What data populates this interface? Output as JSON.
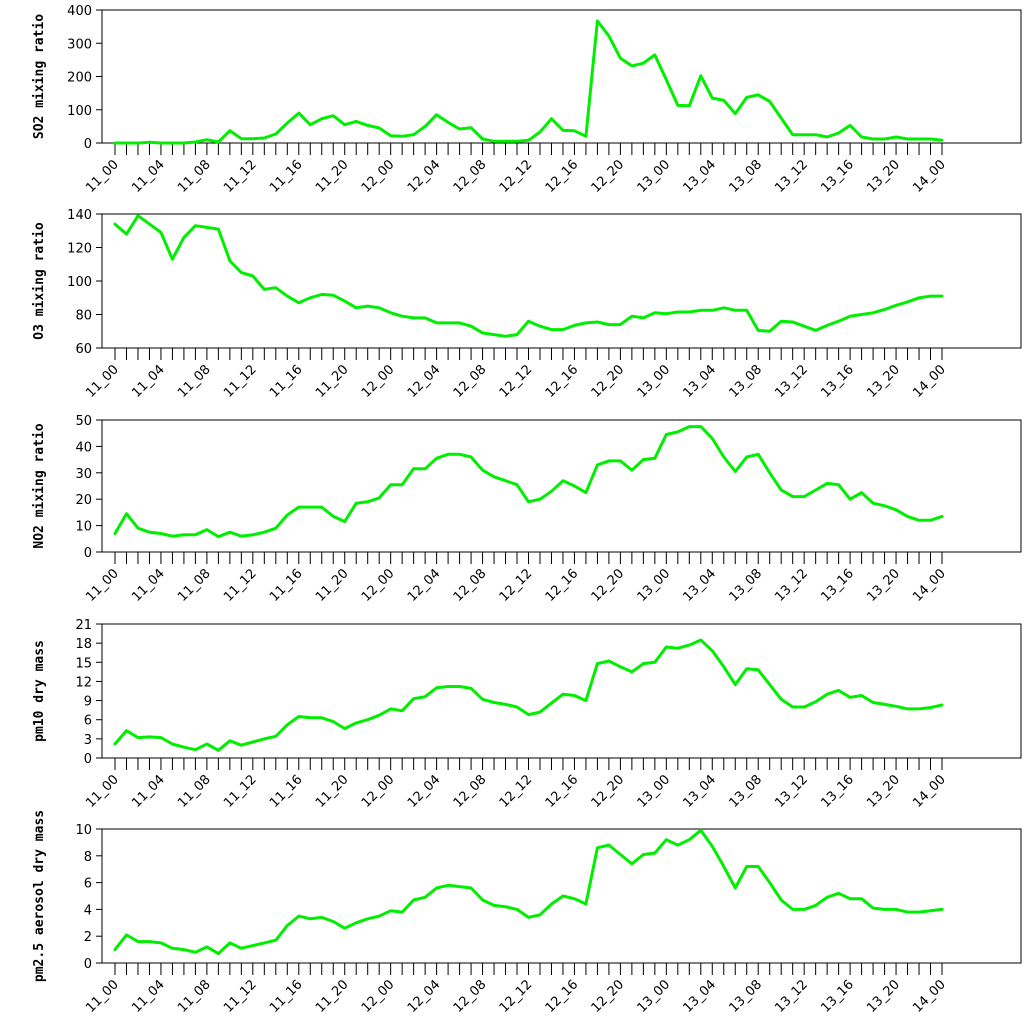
{
  "chart_data": [
    {
      "type": "line",
      "ylabel": "SO2 mixing ratio",
      "ylim": [
        0,
        400
      ],
      "yticks": [
        0,
        100,
        200,
        300,
        400
      ],
      "color": "#00ee00",
      "values": [
        0,
        0,
        0,
        2,
        0,
        0,
        0,
        3,
        10,
        3,
        37,
        13,
        13,
        15,
        27,
        60,
        90,
        55,
        73,
        82,
        55,
        65,
        53,
        45,
        22,
        20,
        25,
        50,
        85,
        62,
        42,
        46,
        12,
        5,
        5,
        5,
        8,
        33,
        73,
        38,
        37,
        20,
        367,
        322,
        255,
        232,
        240,
        265,
        190,
        113,
        112,
        202,
        135,
        128,
        88,
        137,
        145,
        125,
        75,
        25,
        25,
        25,
        18,
        30,
        53,
        18,
        12,
        12,
        18,
        12,
        12,
        12,
        8
      ]
    },
    {
      "type": "line",
      "ylabel": "O3 mixing ratio",
      "ylim": [
        60,
        140
      ],
      "yticks": [
        60,
        80,
        100,
        120,
        140
      ],
      "color": "#00ee00",
      "values": [
        134,
        128,
        139,
        134,
        129,
        113,
        126,
        133,
        132,
        131,
        112,
        105,
        103,
        95,
        96,
        91,
        87,
        90,
        92,
        91.5,
        88,
        84,
        85,
        84,
        81,
        79,
        78,
        78,
        75,
        75,
        75,
        73,
        69,
        68,
        67,
        68,
        76,
        73,
        71,
        71,
        73.5,
        75,
        75.5,
        74,
        74,
        79,
        78,
        81,
        80.5,
        81.5,
        81.5,
        82.5,
        82.5,
        84,
        82.5,
        82.5,
        70.5,
        70,
        76,
        75.5,
        73,
        70.5,
        73.5,
        76,
        79,
        80,
        81,
        83,
        85.5,
        87.5,
        90,
        91,
        91
      ]
    },
    {
      "type": "line",
      "ylabel": "NO2 mixing ratio",
      "ylim": [
        0,
        50
      ],
      "yticks": [
        0,
        10,
        20,
        30,
        40,
        50
      ],
      "color": "#00ee00",
      "values": [
        7,
        14.5,
        9,
        7.5,
        7,
        6,
        6.5,
        6.5,
        8.5,
        5.8,
        7.5,
        6,
        6.5,
        7.5,
        9,
        14,
        17,
        17,
        17,
        13.5,
        11.5,
        18.5,
        19,
        20.5,
        25.5,
        25.5,
        31.5,
        31.5,
        35.5,
        37,
        37,
        36,
        31,
        28.5,
        27,
        25.5,
        19,
        20,
        23,
        27,
        25,
        22.5,
        33,
        34.5,
        34.5,
        31,
        35,
        35.5,
        44.5,
        45.5,
        47.5,
        47.5,
        43,
        36,
        30.5,
        36,
        37,
        30,
        23.5,
        21,
        21,
        23.5,
        26,
        25.5,
        20,
        22.5,
        18.5,
        17.5,
        16,
        13.5,
        12,
        12,
        13.5
      ]
    },
    {
      "type": "line",
      "ylabel": "pm10 dry mass",
      "ylim": [
        0,
        21
      ],
      "yticks": [
        0,
        3,
        6,
        9,
        12,
        15,
        18,
        21
      ],
      "color": "#00ee00",
      "values": [
        2.2,
        4.3,
        3.2,
        3.3,
        3.2,
        2.2,
        1.7,
        1.3,
        2.2,
        1.2,
        2.7,
        2,
        2.5,
        3,
        3.4,
        5.2,
        6.5,
        6.3,
        6.3,
        5.7,
        4.6,
        5.5,
        6,
        6.7,
        7.7,
        7.4,
        9.3,
        9.6,
        11,
        11.2,
        11.2,
        10.9,
        9.2,
        8.7,
        8.4,
        8,
        6.8,
        7.2,
        8.6,
        10,
        9.8,
        9,
        14.8,
        15.2,
        14.3,
        13.5,
        14.8,
        15,
        17.4,
        17.2,
        17.7,
        18.5,
        16.8,
        14.3,
        11.5,
        14,
        13.8,
        11.5,
        9.2,
        8,
        8,
        8.8,
        10,
        10.6,
        9.5,
        9.8,
        8.7,
        8.4,
        8.1,
        7.7,
        7.7,
        7.9,
        8.3
      ]
    },
    {
      "type": "line",
      "ylabel": "pm2.5 aerosol dry mass",
      "ylim": [
        0,
        10
      ],
      "yticks": [
        0,
        2,
        4,
        6,
        8,
        10
      ],
      "color": "#00ee00",
      "values": [
        1,
        2.1,
        1.6,
        1.6,
        1.5,
        1.1,
        1,
        0.8,
        1.2,
        0.7,
        1.5,
        1.1,
        1.3,
        1.5,
        1.7,
        2.8,
        3.5,
        3.3,
        3.4,
        3.1,
        2.6,
        3,
        3.3,
        3.5,
        3.9,
        3.8,
        4.7,
        4.9,
        5.6,
        5.8,
        5.7,
        5.6,
        4.7,
        4.3,
        4.2,
        4,
        3.4,
        3.6,
        4.4,
        5,
        4.8,
        4.4,
        8.6,
        8.8,
        8.1,
        7.4,
        8.1,
        8.2,
        9.2,
        8.8,
        9.2,
        9.9,
        8.7,
        7.2,
        5.6,
        7.2,
        7.2,
        6,
        4.7,
        4,
        4,
        4.3,
        4.9,
        5.2,
        4.8,
        4.8,
        4.1,
        4,
        4,
        3.8,
        3.8,
        3.9,
        4
      ]
    }
  ],
  "x_tick_labels": [
    "11_00",
    "11_04",
    "11_08",
    "11_12",
    "11_16",
    "11_20",
    "12_00",
    "12_04",
    "12_08",
    "12_12",
    "12_16",
    "12_20",
    "13_00",
    "13_04",
    "13_08",
    "13_12",
    "13_16",
    "13_20",
    "14_00"
  ],
  "x_tick_every": 4,
  "x_count": 73
}
